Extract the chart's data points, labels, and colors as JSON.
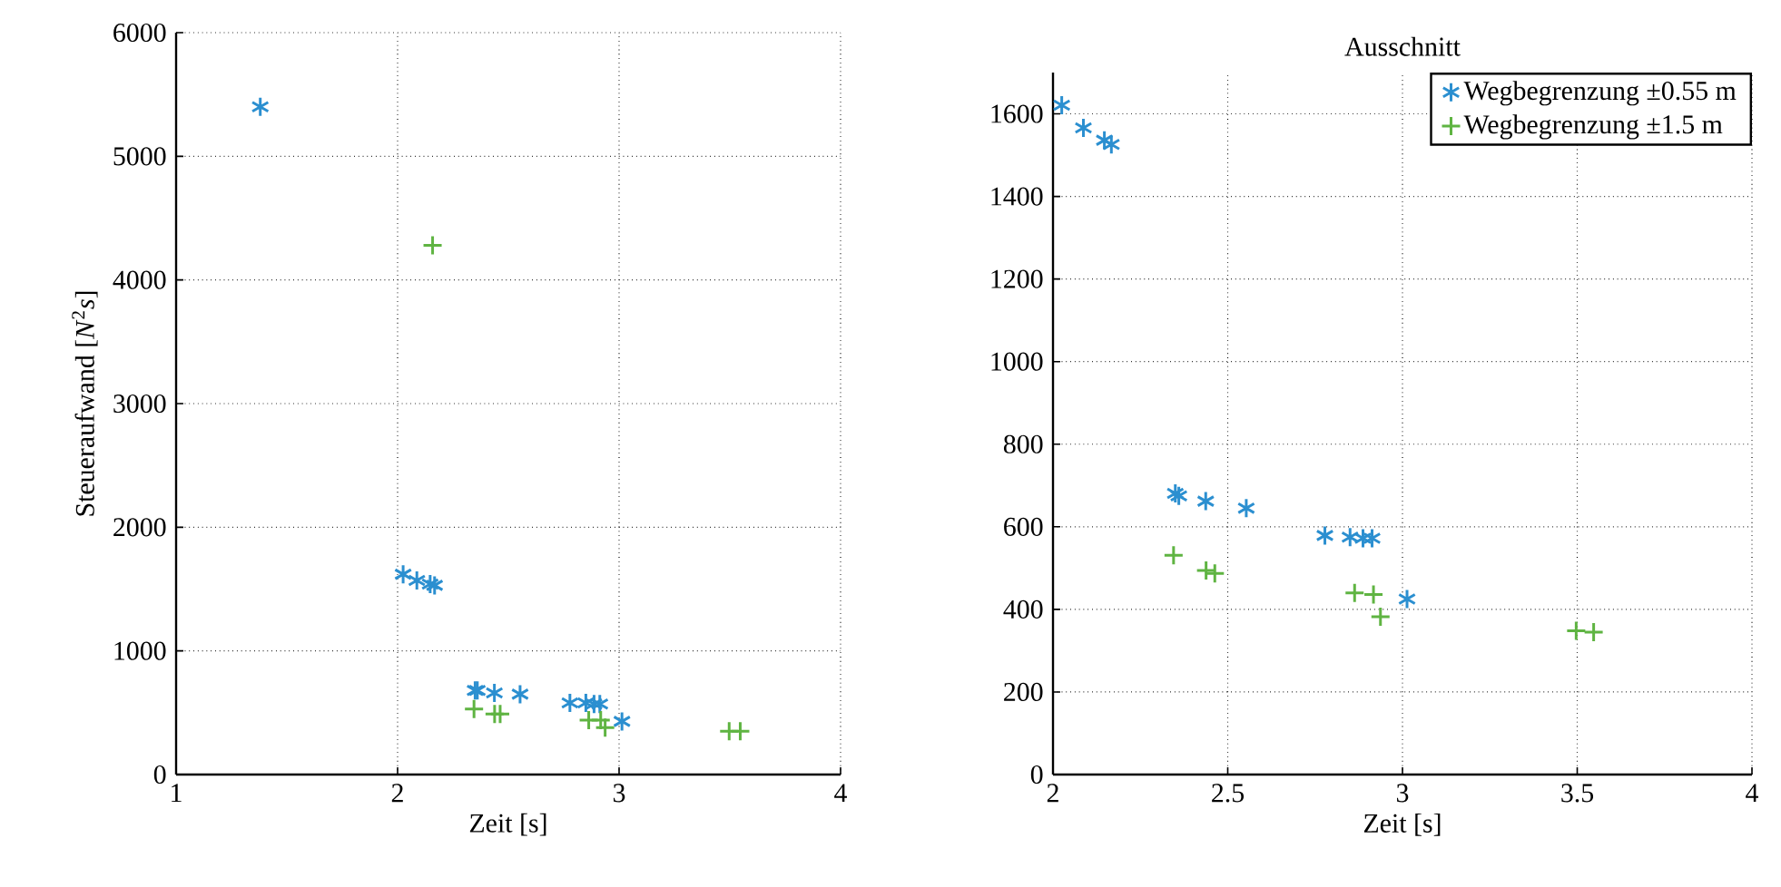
{
  "chart_data": [
    {
      "type": "scatter",
      "xlabel": "Zeit [s]",
      "ylabel": "Steueraufwand [*N*$^{2}$*s*]",
      "xlim": [
        1,
        4
      ],
      "ylim": [
        0,
        6000
      ],
      "xticks": [
        1,
        2,
        3,
        4
      ],
      "yticks": [
        0,
        1000,
        2000,
        3000,
        4000,
        5000,
        6000
      ],
      "grid": true,
      "legend": false,
      "series": [
        {
          "color": "#2b8fd0",
          "x": [
            1.38,
            2.025,
            2.087,
            2.147,
            2.167,
            2.35,
            2.36,
            2.437,
            2.553,
            2.778,
            2.85,
            2.887,
            2.913,
            3.013
          ],
          "values": [
            5400,
            1620,
            1570,
            1540,
            1530,
            680,
            680,
            660,
            650,
            580,
            580,
            570,
            570,
            430
          ]
        },
        {
          "color": "#5fb442",
          "marker": "cross",
          "x": [
            2.158,
            2.345,
            2.438,
            2.463,
            2.863,
            2.917,
            2.937,
            3.497,
            3.547
          ],
          "values": [
            4280,
            530,
            490,
            490,
            440,
            440,
            380,
            350,
            350
          ]
        }
      ]
    },
    {
      "type": "scatter",
      "title": "Ausschnitt",
      "xlabel": "Zeit [s]",
      "xlim": [
        2,
        4
      ],
      "ylim": [
        0,
        1700
      ],
      "xticks": [
        2,
        2.5,
        3,
        3.5,
        4
      ],
      "yticks": [
        0,
        200,
        400,
        600,
        800,
        1000,
        1200,
        1400,
        1600
      ],
      "grid": true,
      "legend": "top right",
      "series": [
        {
          "name": "Wegbegrenzung ±0.55 m",
          "color": "#2b8fd0",
          "x": [
            2.025,
            2.087,
            2.147,
            2.167,
            2.35,
            2.36,
            2.437,
            2.553,
            2.778,
            2.85,
            2.887,
            2.913,
            3.013
          ],
          "values": [
            1621,
            1566,
            1536,
            1526,
            681,
            675,
            662,
            645,
            579,
            575,
            572,
            572,
            425
          ]
        },
        {
          "name": "Wegbegrenzung ±1.5 m",
          "color": "#5fb442",
          "marker": "cross",
          "x": [
            2.345,
            2.438,
            2.463,
            2.863,
            2.917,
            2.937,
            3.497,
            3.547
          ],
          "values": [
            531,
            494,
            487,
            440,
            436,
            382,
            348,
            345
          ]
        }
      ]
    }
  ]
}
